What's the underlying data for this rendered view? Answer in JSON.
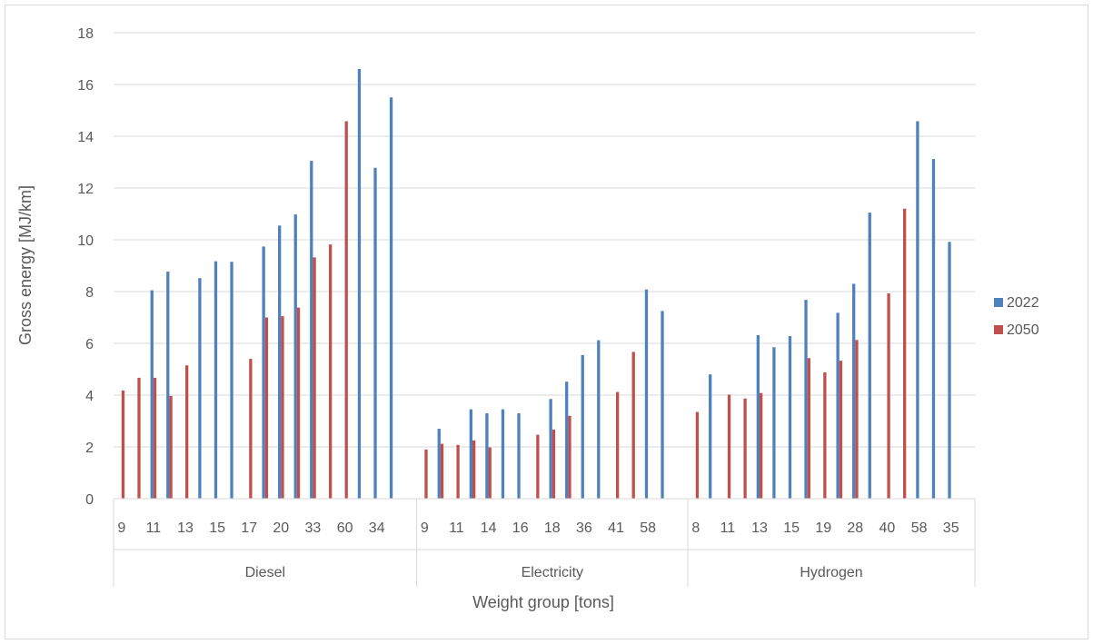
{
  "chart_data": {
    "type": "bar",
    "title": "",
    "xlabel": "Weight group [tons]",
    "ylabel": "Gross energy [MJ/km]",
    "ylim": [
      0,
      18
    ],
    "yticks": [
      0,
      2,
      4,
      6,
      8,
      10,
      12,
      14,
      16,
      18
    ],
    "grid": true,
    "legend_position": "right",
    "groups": [
      {
        "name": "Diesel",
        "slots": 19
      },
      {
        "name": "Electricity",
        "slots": 17
      },
      {
        "name": "Hydrogen",
        "slots": 18
      }
    ],
    "tick_labels": [
      [
        "9",
        "11",
        "13",
        "15",
        "17",
        "20",
        "33",
        "60",
        "34"
      ],
      [
        "9",
        "11",
        "14",
        "16",
        "18",
        "36",
        "41",
        "58"
      ],
      [
        "8",
        "11",
        "13",
        "15",
        "19",
        "28",
        "40",
        "58",
        "35"
      ]
    ],
    "series": [
      {
        "name": "2022",
        "color": "#4f81bd",
        "values": [
          [
            null,
            null,
            8.05,
            8.77,
            null,
            8.52,
            9.17,
            9.15,
            null,
            9.74,
            10.55,
            10.98,
            13.05,
            null,
            null,
            16.6,
            12.78,
            15.5,
            null
          ],
          [
            null,
            2.7,
            null,
            3.45,
            3.3,
            3.45,
            3.3,
            null,
            3.85,
            4.52,
            5.55,
            6.12,
            null,
            null,
            8.08,
            7.25,
            null
          ],
          [
            null,
            4.8,
            null,
            null,
            6.32,
            5.85,
            6.28,
            7.68,
            null,
            7.18,
            8.3,
            11.05,
            null,
            null,
            14.58,
            13.12,
            9.92,
            null
          ]
        ]
      },
      {
        "name": "2050",
        "color": "#c0504d",
        "values": [
          [
            4.18,
            4.67,
            4.67,
            3.97,
            5.15,
            null,
            null,
            null,
            5.4,
            7.0,
            7.05,
            7.38,
            9.32,
            9.82,
            14.58,
            null,
            null,
            null,
            null
          ],
          [
            1.9,
            2.12,
            2.08,
            2.25,
            1.98,
            null,
            null,
            2.47,
            2.67,
            3.2,
            null,
            null,
            4.12,
            5.67,
            null,
            null,
            null
          ],
          [
            3.35,
            null,
            4.02,
            3.87,
            4.08,
            null,
            null,
            5.43,
            4.88,
            5.33,
            6.13,
            null,
            7.93,
            11.2,
            null,
            null,
            null,
            null
          ]
        ]
      }
    ]
  }
}
